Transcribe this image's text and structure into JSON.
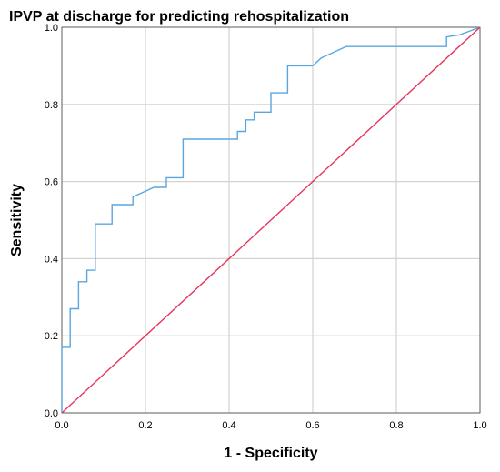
{
  "chart_data": {
    "type": "line",
    "title": "IPVP at discharge for predicting rehospitalization",
    "xlabel": "1 - Specificity",
    "ylabel": "Sensitivity",
    "xlim": [
      0,
      1
    ],
    "ylim": [
      0,
      1
    ],
    "x_ticks": [
      "0.0",
      "0.2",
      "0.4",
      "0.6",
      "0.8",
      "1.0"
    ],
    "y_ticks": [
      "0.0",
      "0.2",
      "0.4",
      "0.6",
      "0.8",
      "1.0"
    ],
    "grid": true,
    "series": [
      {
        "color": "#5aa6e0",
        "x": [
          0,
          0,
          0.02,
          0.02,
          0.04,
          0.04,
          0.06,
          0.06,
          0.08,
          0.08,
          0.12,
          0.12,
          0.17,
          0.17,
          0.18,
          0.19,
          0.2,
          0.22,
          0.23,
          0.25,
          0.25,
          0.29,
          0.29,
          0.33,
          0.38,
          0.42,
          0.42,
          0.44,
          0.44,
          0.46,
          0.46,
          0.5,
          0.5,
          0.54,
          0.54,
          0.58,
          0.6,
          0.6,
          0.62,
          0.63,
          0.66,
          0.68,
          0.72,
          0.9,
          0.92,
          0.92,
          0.95,
          1.0
        ],
        "y": [
          0,
          0.17,
          0.17,
          0.27,
          0.27,
          0.34,
          0.34,
          0.37,
          0.37,
          0.49,
          0.49,
          0.54,
          0.54,
          0.56,
          0.565,
          0.57,
          0.575,
          0.585,
          0.585,
          0.585,
          0.61,
          0.61,
          0.71,
          0.71,
          0.71,
          0.71,
          0.73,
          0.73,
          0.76,
          0.76,
          0.78,
          0.78,
          0.83,
          0.83,
          0.9,
          0.9,
          0.9,
          0.9,
          0.92,
          0.925,
          0.94,
          0.95,
          0.95,
          0.95,
          0.95,
          0.975,
          0.98,
          1.0
        ]
      },
      {
        "color": "#e8365c",
        "x": [
          0,
          1
        ],
        "y": [
          0,
          1
        ]
      }
    ]
  }
}
